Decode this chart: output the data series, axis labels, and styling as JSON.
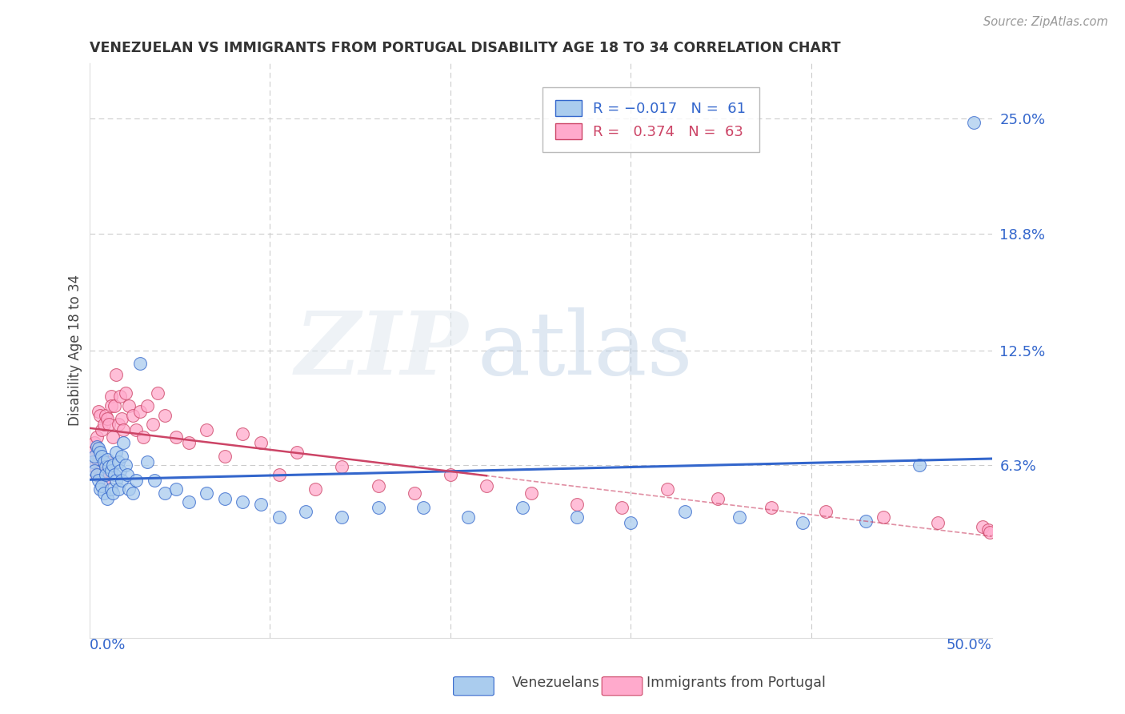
{
  "title": "VENEZUELAN VS IMMIGRANTS FROM PORTUGAL DISABILITY AGE 18 TO 34 CORRELATION CHART",
  "source": "Source: ZipAtlas.com",
  "ylabel": "Disability Age 18 to 34",
  "xlim": [
    0.0,
    0.5
  ],
  "ylim": [
    -0.03,
    0.28
  ],
  "color_blue": "#aaccee",
  "color_pink": "#ffaacc",
  "color_blue_line": "#3366cc",
  "color_pink_line": "#cc4466",
  "color_gray_dash": "#cccccc",
  "venezuelan_x": [
    0.002,
    0.003,
    0.003,
    0.004,
    0.004,
    0.005,
    0.005,
    0.006,
    0.006,
    0.007,
    0.007,
    0.008,
    0.008,
    0.009,
    0.009,
    0.01,
    0.01,
    0.011,
    0.012,
    0.012,
    0.013,
    0.013,
    0.014,
    0.015,
    0.015,
    0.016,
    0.016,
    0.017,
    0.018,
    0.018,
    0.019,
    0.02,
    0.021,
    0.022,
    0.024,
    0.026,
    0.028,
    0.032,
    0.036,
    0.042,
    0.048,
    0.055,
    0.065,
    0.075,
    0.085,
    0.095,
    0.105,
    0.12,
    0.14,
    0.16,
    0.185,
    0.21,
    0.24,
    0.27,
    0.3,
    0.33,
    0.36,
    0.395,
    0.43,
    0.46,
    0.49
  ],
  "venezuelan_y": [
    0.065,
    0.068,
    0.06,
    0.073,
    0.058,
    0.072,
    0.055,
    0.07,
    0.05,
    0.068,
    0.052,
    0.065,
    0.048,
    0.062,
    0.058,
    0.066,
    0.045,
    0.062,
    0.06,
    0.05,
    0.063,
    0.048,
    0.058,
    0.07,
    0.055,
    0.065,
    0.05,
    0.06,
    0.068,
    0.055,
    0.075,
    0.063,
    0.058,
    0.05,
    0.048,
    0.055,
    0.118,
    0.065,
    0.055,
    0.048,
    0.05,
    0.043,
    0.048,
    0.045,
    0.043,
    0.042,
    0.035,
    0.038,
    0.035,
    0.04,
    0.04,
    0.035,
    0.04,
    0.035,
    0.032,
    0.038,
    0.035,
    0.032,
    0.033,
    0.063,
    0.248
  ],
  "portugal_x": [
    0.002,
    0.003,
    0.003,
    0.004,
    0.004,
    0.005,
    0.005,
    0.006,
    0.006,
    0.007,
    0.007,
    0.008,
    0.008,
    0.009,
    0.009,
    0.01,
    0.01,
    0.011,
    0.012,
    0.012,
    0.013,
    0.014,
    0.015,
    0.016,
    0.017,
    0.018,
    0.019,
    0.02,
    0.022,
    0.024,
    0.026,
    0.028,
    0.03,
    0.032,
    0.035,
    0.038,
    0.042,
    0.048,
    0.055,
    0.065,
    0.075,
    0.085,
    0.095,
    0.105,
    0.115,
    0.125,
    0.14,
    0.16,
    0.18,
    0.2,
    0.22,
    0.245,
    0.27,
    0.295,
    0.32,
    0.348,
    0.378,
    0.408,
    0.44,
    0.47,
    0.495,
    0.498,
    0.499
  ],
  "portugal_y": [
    0.07,
    0.075,
    0.062,
    0.078,
    0.058,
    0.092,
    0.065,
    0.09,
    0.06,
    0.082,
    0.058,
    0.085,
    0.055,
    0.09,
    0.06,
    0.088,
    0.065,
    0.085,
    0.1,
    0.095,
    0.078,
    0.095,
    0.112,
    0.085,
    0.1,
    0.088,
    0.082,
    0.102,
    0.095,
    0.09,
    0.082,
    0.092,
    0.078,
    0.095,
    0.085,
    0.102,
    0.09,
    0.078,
    0.075,
    0.082,
    0.068,
    0.08,
    0.075,
    0.058,
    0.07,
    0.05,
    0.062,
    0.052,
    0.048,
    0.058,
    0.052,
    0.048,
    0.042,
    0.04,
    0.05,
    0.045,
    0.04,
    0.038,
    0.035,
    0.032,
    0.03,
    0.028,
    0.027
  ]
}
